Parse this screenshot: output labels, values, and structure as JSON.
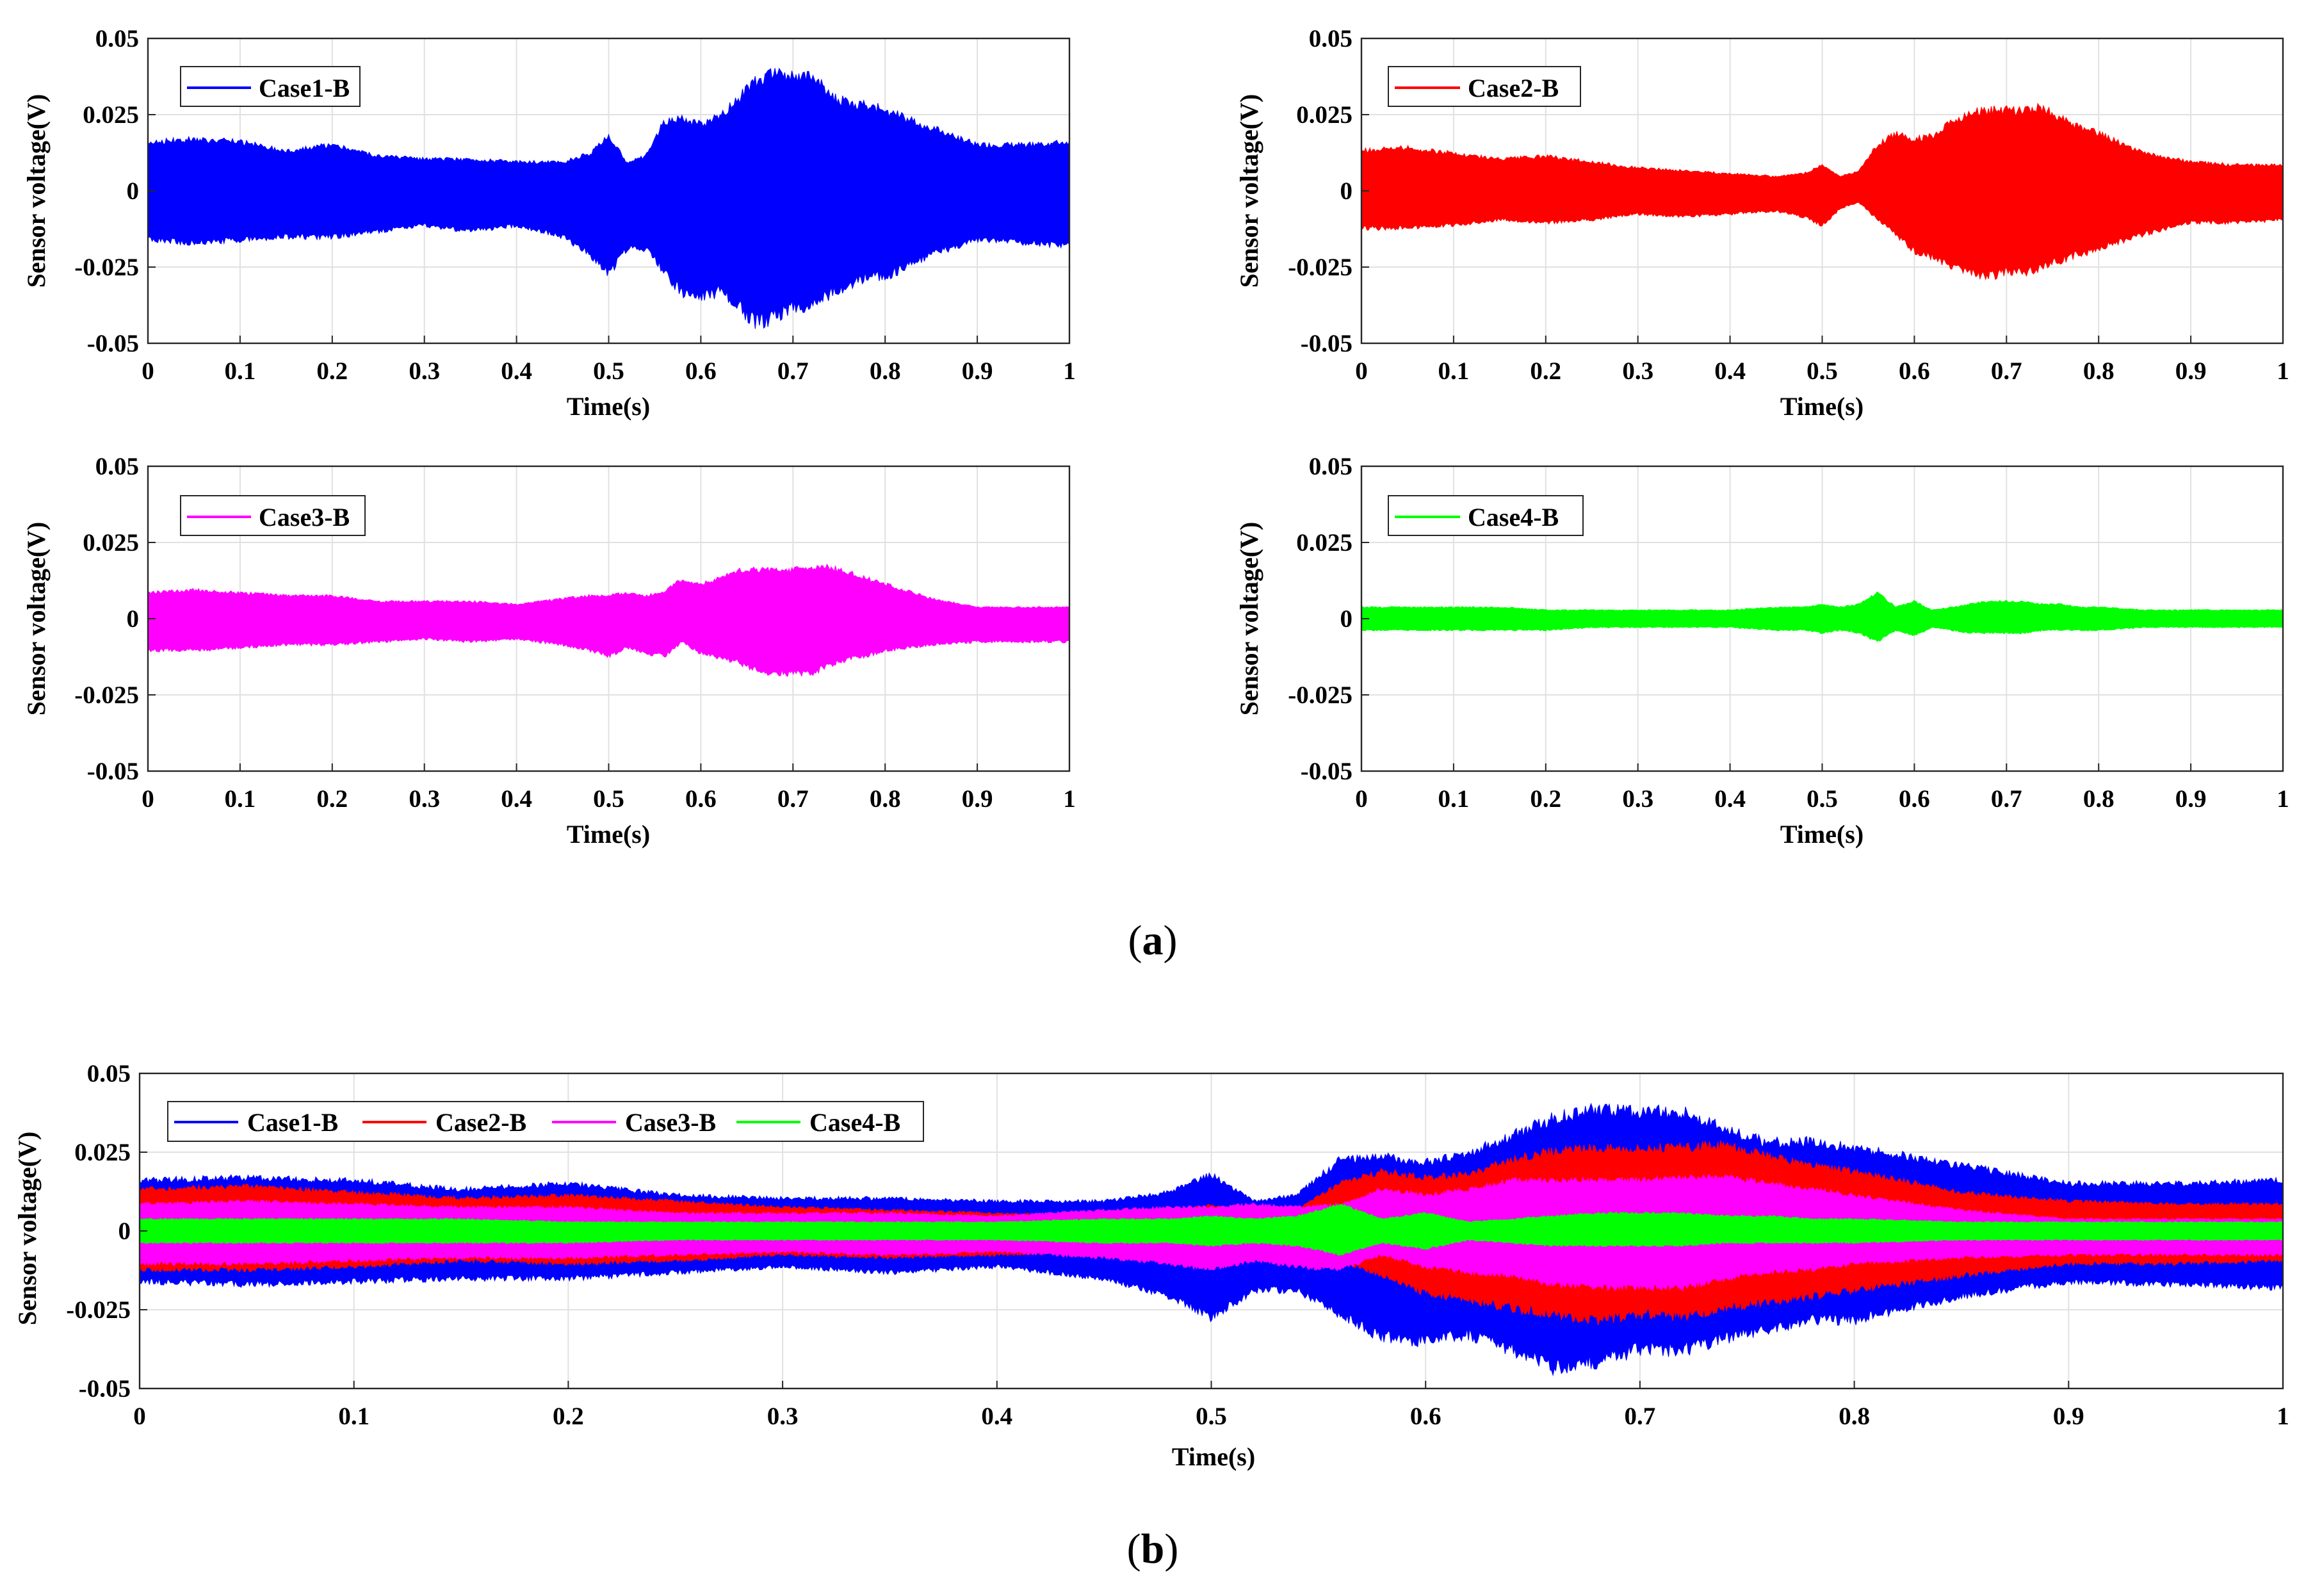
{
  "captions": {
    "a_letter": "a",
    "b_letter": "b"
  },
  "colors": {
    "Case1-B": "#0000ff",
    "Case2-B": "#ff0000",
    "Case3-B": "#ff00ff",
    "Case4-B": "#00ff00"
  },
  "chart_data": [
    {
      "type": "area",
      "panel": "a",
      "xlabel": "Time(s)",
      "ylabel": "Sensor voltage(V)",
      "xlim": [
        0,
        1
      ],
      "ylim": [
        -0.05,
        0.05
      ],
      "xticks": [
        "0",
        "0.1",
        "0.2",
        "0.3",
        "0.4",
        "0.5",
        "0.6",
        "0.7",
        "0.8",
        "0.9",
        "1"
      ],
      "yticks": [
        "0.05",
        "0.025",
        "0",
        "-0.025",
        "-0.05"
      ],
      "grid": true,
      "legend_position": "top-left",
      "series": [
        {
          "name": "Case1-B",
          "color": "#0000ff",
          "envelope_upper": [
            [
              0,
              0.017
            ],
            [
              0.05,
              0.018
            ],
            [
              0.1,
              0.017
            ],
            [
              0.15,
              0.014
            ],
            [
              0.2,
              0.016
            ],
            [
              0.25,
              0.012
            ],
            [
              0.3,
              0.011
            ],
            [
              0.35,
              0.011
            ],
            [
              0.4,
              0.01
            ],
            [
              0.45,
              0.01
            ],
            [
              0.48,
              0.013
            ],
            [
              0.5,
              0.019
            ],
            [
              0.52,
              0.01
            ],
            [
              0.54,
              0.012
            ],
            [
              0.56,
              0.024
            ],
            [
              0.58,
              0.025
            ],
            [
              0.6,
              0.023
            ],
            [
              0.62,
              0.026
            ],
            [
              0.64,
              0.032
            ],
            [
              0.66,
              0.038
            ],
            [
              0.68,
              0.041
            ],
            [
              0.7,
              0.04
            ],
            [
              0.72,
              0.04
            ],
            [
              0.74,
              0.034
            ],
            [
              0.76,
              0.03
            ],
            [
              0.78,
              0.03
            ],
            [
              0.8,
              0.028
            ],
            [
              0.85,
              0.022
            ],
            [
              0.9,
              0.016
            ],
            [
              0.95,
              0.016
            ],
            [
              1,
              0.017
            ]
          ],
          "envelope_lower": [
            [
              0,
              -0.017
            ],
            [
              0.05,
              -0.018
            ],
            [
              0.1,
              -0.017
            ],
            [
              0.15,
              -0.016
            ],
            [
              0.2,
              -0.016
            ],
            [
              0.25,
              -0.014
            ],
            [
              0.3,
              -0.012
            ],
            [
              0.35,
              -0.014
            ],
            [
              0.4,
              -0.012
            ],
            [
              0.45,
              -0.016
            ],
            [
              0.48,
              -0.022
            ],
            [
              0.5,
              -0.029
            ],
            [
              0.52,
              -0.02
            ],
            [
              0.54,
              -0.02
            ],
            [
              0.56,
              -0.028
            ],
            [
              0.58,
              -0.036
            ],
            [
              0.6,
              -0.037
            ],
            [
              0.62,
              -0.035
            ],
            [
              0.64,
              -0.04
            ],
            [
              0.66,
              -0.046
            ],
            [
              0.68,
              -0.044
            ],
            [
              0.7,
              -0.04
            ],
            [
              0.72,
              -0.04
            ],
            [
              0.74,
              -0.036
            ],
            [
              0.76,
              -0.033
            ],
            [
              0.78,
              -0.03
            ],
            [
              0.8,
              -0.03
            ],
            [
              0.85,
              -0.022
            ],
            [
              0.9,
              -0.017
            ],
            [
              0.95,
              -0.018
            ],
            [
              1,
              -0.019
            ]
          ]
        },
        {
          "name": "Case2-B",
          "color": "#ff0000",
          "envelope_upper": [
            [
              0,
              0.014
            ],
            [
              0.05,
              0.015
            ],
            [
              0.1,
              0.013
            ],
            [
              0.15,
              0.011
            ],
            [
              0.2,
              0.012
            ],
            [
              0.25,
              0.01
            ],
            [
              0.3,
              0.008
            ],
            [
              0.35,
              0.007
            ],
            [
              0.4,
              0.006
            ],
            [
              0.45,
              0.005
            ],
            [
              0.48,
              0.006
            ],
            [
              0.5,
              0.009
            ],
            [
              0.52,
              0.005
            ],
            [
              0.54,
              0.007
            ],
            [
              0.56,
              0.016
            ],
            [
              0.58,
              0.02
            ],
            [
              0.6,
              0.018
            ],
            [
              0.62,
              0.019
            ],
            [
              0.64,
              0.024
            ],
            [
              0.66,
              0.027
            ],
            [
              0.68,
              0.028
            ],
            [
              0.7,
              0.028
            ],
            [
              0.72,
              0.028
            ],
            [
              0.74,
              0.029
            ],
            [
              0.76,
              0.025
            ],
            [
              0.78,
              0.022
            ],
            [
              0.8,
              0.02
            ],
            [
              0.85,
              0.013
            ],
            [
              0.9,
              0.01
            ],
            [
              0.95,
              0.009
            ],
            [
              1,
              0.009
            ]
          ],
          "envelope_lower": [
            [
              0,
              -0.013
            ],
            [
              0.05,
              -0.013
            ],
            [
              0.1,
              -0.012
            ],
            [
              0.15,
              -0.01
            ],
            [
              0.2,
              -0.011
            ],
            [
              0.25,
              -0.01
            ],
            [
              0.3,
              -0.008
            ],
            [
              0.35,
              -0.009
            ],
            [
              0.4,
              -0.008
            ],
            [
              0.45,
              -0.007
            ],
            [
              0.48,
              -0.009
            ],
            [
              0.5,
              -0.012
            ],
            [
              0.52,
              -0.006
            ],
            [
              0.54,
              -0.004
            ],
            [
              0.56,
              -0.01
            ],
            [
              0.58,
              -0.015
            ],
            [
              0.6,
              -0.021
            ],
            [
              0.62,
              -0.023
            ],
            [
              0.64,
              -0.026
            ],
            [
              0.66,
              -0.028
            ],
            [
              0.68,
              -0.03
            ],
            [
              0.7,
              -0.028
            ],
            [
              0.72,
              -0.029
            ],
            [
              0.74,
              -0.026
            ],
            [
              0.76,
              -0.024
            ],
            [
              0.78,
              -0.022
            ],
            [
              0.8,
              -0.02
            ],
            [
              0.85,
              -0.015
            ],
            [
              0.9,
              -0.011
            ],
            [
              0.95,
              -0.011
            ],
            [
              1,
              -0.01
            ]
          ]
        },
        {
          "name": "Case3-B",
          "color": "#ff00ff",
          "envelope_upper": [
            [
              0,
              0.009
            ],
            [
              0.05,
              0.01
            ],
            [
              0.1,
              0.009
            ],
            [
              0.15,
              0.008
            ],
            [
              0.2,
              0.008
            ],
            [
              0.25,
              0.006
            ],
            [
              0.3,
              0.006
            ],
            [
              0.35,
              0.006
            ],
            [
              0.4,
              0.005
            ],
            [
              0.45,
              0.007
            ],
            [
              0.48,
              0.008
            ],
            [
              0.5,
              0.008
            ],
            [
              0.52,
              0.009
            ],
            [
              0.54,
              0.008
            ],
            [
              0.56,
              0.009
            ],
            [
              0.58,
              0.014
            ],
            [
              0.6,
              0.012
            ],
            [
              0.62,
              0.014
            ],
            [
              0.64,
              0.017
            ],
            [
              0.66,
              0.017
            ],
            [
              0.68,
              0.017
            ],
            [
              0.7,
              0.017
            ],
            [
              0.72,
              0.018
            ],
            [
              0.74,
              0.018
            ],
            [
              0.76,
              0.016
            ],
            [
              0.78,
              0.014
            ],
            [
              0.8,
              0.012
            ],
            [
              0.85,
              0.007
            ],
            [
              0.9,
              0.004
            ],
            [
              0.95,
              0.004
            ],
            [
              1,
              0.004
            ]
          ],
          "envelope_lower": [
            [
              0,
              -0.011
            ],
            [
              0.05,
              -0.011
            ],
            [
              0.1,
              -0.01
            ],
            [
              0.15,
              -0.009
            ],
            [
              0.2,
              -0.009
            ],
            [
              0.25,
              -0.008
            ],
            [
              0.3,
              -0.007
            ],
            [
              0.35,
              -0.008
            ],
            [
              0.4,
              -0.007
            ],
            [
              0.45,
              -0.009
            ],
            [
              0.48,
              -0.011
            ],
            [
              0.5,
              -0.013
            ],
            [
              0.52,
              -0.01
            ],
            [
              0.54,
              -0.012
            ],
            [
              0.56,
              -0.013
            ],
            [
              0.58,
              -0.008
            ],
            [
              0.6,
              -0.012
            ],
            [
              0.62,
              -0.014
            ],
            [
              0.64,
              -0.015
            ],
            [
              0.66,
              -0.018
            ],
            [
              0.68,
              -0.019
            ],
            [
              0.7,
              -0.019
            ],
            [
              0.72,
              -0.019
            ],
            [
              0.74,
              -0.016
            ],
            [
              0.76,
              -0.014
            ],
            [
              0.78,
              -0.013
            ],
            [
              0.8,
              -0.011
            ],
            [
              0.85,
              -0.009
            ],
            [
              0.9,
              -0.008
            ],
            [
              0.95,
              -0.008
            ],
            [
              1,
              -0.008
            ]
          ]
        },
        {
          "name": "Case4-B",
          "color": "#00ff00",
          "envelope_upper": [
            [
              0,
              0.004
            ],
            [
              0.05,
              0.004
            ],
            [
              0.1,
              0.004
            ],
            [
              0.15,
              0.004
            ],
            [
              0.2,
              0.003
            ],
            [
              0.25,
              0.003
            ],
            [
              0.3,
              0.003
            ],
            [
              0.35,
              0.003
            ],
            [
              0.4,
              0.003
            ],
            [
              0.45,
              0.004
            ],
            [
              0.48,
              0.004
            ],
            [
              0.5,
              0.005
            ],
            [
              0.52,
              0.004
            ],
            [
              0.54,
              0.005
            ],
            [
              0.56,
              0.009
            ],
            [
              0.58,
              0.004
            ],
            [
              0.6,
              0.006
            ],
            [
              0.62,
              0.003
            ],
            [
              0.64,
              0.004
            ],
            [
              0.66,
              0.005
            ],
            [
              0.68,
              0.006
            ],
            [
              0.7,
              0.006
            ],
            [
              0.72,
              0.006
            ],
            [
              0.74,
              0.005
            ],
            [
              0.76,
              0.005
            ],
            [
              0.78,
              0.004
            ],
            [
              0.8,
              0.004
            ],
            [
              0.85,
              0.003
            ],
            [
              0.9,
              0.003
            ],
            [
              0.95,
              0.003
            ],
            [
              1,
              0.003
            ]
          ],
          "envelope_lower": [
            [
              0,
              -0.004
            ],
            [
              0.05,
              -0.004
            ],
            [
              0.1,
              -0.004
            ],
            [
              0.15,
              -0.004
            ],
            [
              0.2,
              -0.004
            ],
            [
              0.25,
              -0.003
            ],
            [
              0.3,
              -0.003
            ],
            [
              0.35,
              -0.003
            ],
            [
              0.4,
              -0.003
            ],
            [
              0.45,
              -0.004
            ],
            [
              0.48,
              -0.004
            ],
            [
              0.5,
              -0.005
            ],
            [
              0.52,
              -0.004
            ],
            [
              0.54,
              -0.005
            ],
            [
              0.56,
              -0.008
            ],
            [
              0.58,
              -0.004
            ],
            [
              0.6,
              -0.006
            ],
            [
              0.62,
              -0.003
            ],
            [
              0.64,
              -0.004
            ],
            [
              0.66,
              -0.005
            ],
            [
              0.68,
              -0.005
            ],
            [
              0.7,
              -0.005
            ],
            [
              0.72,
              -0.005
            ],
            [
              0.74,
              -0.004
            ],
            [
              0.76,
              -0.004
            ],
            [
              0.78,
              -0.004
            ],
            [
              0.8,
              -0.004
            ],
            [
              0.85,
              -0.003
            ],
            [
              0.9,
              -0.003
            ],
            [
              0.95,
              -0.003
            ],
            [
              1,
              -0.003
            ]
          ]
        }
      ]
    },
    {
      "type": "area",
      "panel": "b",
      "title": "",
      "xlabel": "Time(s)",
      "ylabel": "Sensor voltage(V)",
      "xlim": [
        0,
        1
      ],
      "ylim": [
        -0.05,
        0.05
      ],
      "xticks": [
        "0",
        "0.1",
        "0.2",
        "0.3",
        "0.4",
        "0.5",
        "0.6",
        "0.7",
        "0.8",
        "0.9",
        "1"
      ],
      "yticks": [
        "0.05",
        "0.025",
        "0",
        "-0.025",
        "-0.05"
      ],
      "grid": true,
      "legend_position": "top-left",
      "legend_entries": [
        "Case1-B",
        "Case2-B",
        "Case3-B",
        "Case4-B"
      ],
      "series_ref": "same envelopes as panel a, overlaid (Case1-B drawn behind, Case4-B in front)"
    }
  ]
}
